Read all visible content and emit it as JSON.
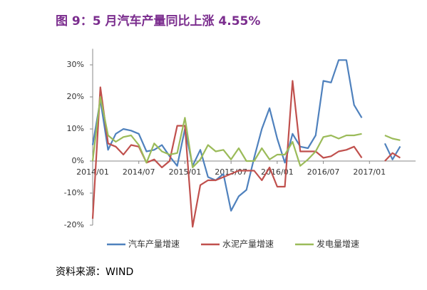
{
  "chart_data": {
    "type": "line",
    "title": "图 9：5 月汽车产量同比上涨 4.55%",
    "source": "资料来源：WIND",
    "categories": [
      "2014/01",
      null,
      null,
      null,
      null,
      null,
      "2014/07",
      null,
      null,
      null,
      null,
      null,
      "2015/01",
      null,
      null,
      null,
      null,
      null,
      "2015/07",
      null,
      null,
      null,
      null,
      null,
      "2016/01",
      null,
      null,
      null,
      null,
      null,
      "2016/07",
      null,
      null,
      null,
      null,
      null,
      "2017/01",
      null,
      null,
      null,
      null
    ],
    "series": [
      {
        "name": "汽车产量增速",
        "color": "#4f81bd",
        "values": [
          5,
          19,
          3.5,
          8.5,
          10,
          9.5,
          8.5,
          3,
          3.5,
          5,
          1.5,
          -1.5,
          10,
          -1.5,
          3.5,
          -5,
          -6,
          -4,
          -15.5,
          -11,
          -9,
          1,
          10,
          16.5,
          7,
          -0.5,
          8.5,
          4.5,
          4,
          8,
          25,
          24.5,
          31.5,
          31.5,
          17.5,
          13.5,
          null,
          null,
          5.5,
          0.5,
          4.55
        ]
      },
      {
        "name": "水泥产量增速",
        "color": "#c0504d",
        "values": [
          -18,
          23,
          5.5,
          4.5,
          2,
          5,
          4.5,
          -0.5,
          0.5,
          -2,
          0,
          11,
          11,
          -20.5,
          -7.5,
          -6,
          -6,
          -5,
          -4,
          -3,
          -3,
          -3,
          -6,
          -2,
          -8,
          -8,
          25,
          3,
          3,
          3,
          1,
          1.5,
          3,
          3.5,
          4.5,
          1,
          null,
          null,
          0,
          2.5,
          1
        ]
      },
      {
        "name": "发电量增速",
        "color": "#9bbb59",
        "values": [
          0,
          20,
          8,
          6,
          7.5,
          8,
          5,
          -0.5,
          5.5,
          3,
          2,
          2.5,
          13.5,
          -2,
          0.5,
          5,
          3,
          3.5,
          0.5,
          4,
          0,
          0,
          4,
          0.5,
          2,
          2,
          6,
          -1.5,
          0.5,
          3,
          7.5,
          8,
          7,
          8,
          8,
          8.5,
          null,
          null,
          8,
          7,
          6.5
        ]
      }
    ],
    "ylim": [
      -20,
      35
    ],
    "yticks": [
      {
        "value": -20,
        "label": "-20%"
      },
      {
        "value": -10,
        "label": "-10%"
      },
      {
        "value": 0,
        "label": "0%"
      },
      {
        "value": 10,
        "label": "10%"
      },
      {
        "value": 20,
        "label": "20%"
      },
      {
        "value": 30,
        "label": "30%"
      }
    ]
  }
}
